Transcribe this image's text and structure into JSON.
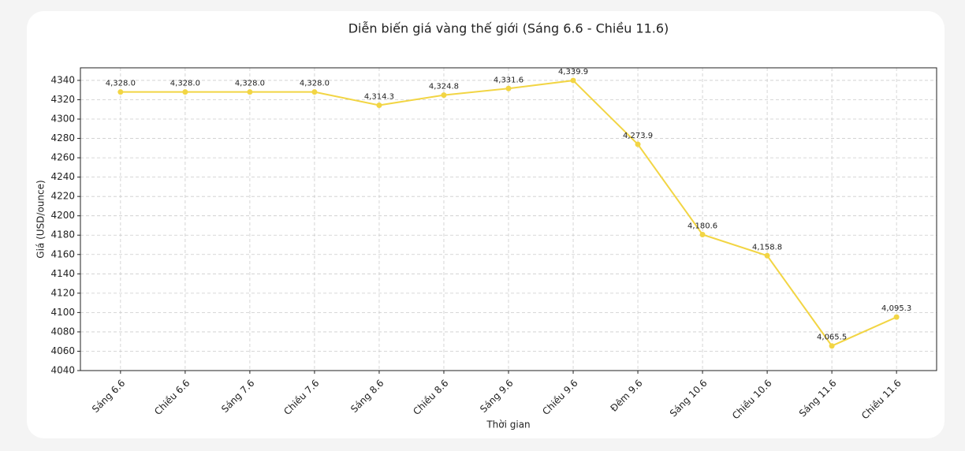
{
  "chart_data": {
    "type": "line",
    "title": "Diễn biến giá vàng thế giới (Sáng 6.6 - Chiều 11.6)",
    "x_label": "Thời gian",
    "y_label": "Giá (USD/ounce)",
    "categories": [
      "Sáng 6.6",
      "Chiều 6.6",
      "Sáng 7.6",
      "Chiều 7.6",
      "Sáng 8.6",
      "Chiều 8.6",
      "Sáng 9.6",
      "Chiều 9.6",
      "Đêm 9.6",
      "Sáng 10.6",
      "Chiều 10.6",
      "Sáng 11.6",
      "Chiều 11.6"
    ],
    "series": [
      {
        "name": "Giá",
        "color": "#f2d544",
        "values": [
          4328.0,
          4328.0,
          4328.0,
          4328.0,
          4314.3,
          4324.8,
          4331.6,
          4339.9,
          4273.9,
          4180.6,
          4158.8,
          4065.5,
          4095.3
        ],
        "value_labels": [
          "4,328.0",
          "4,328.0",
          "4,328.0",
          "4,328.0",
          "4,314.3",
          "4,324.8",
          "4,331.6",
          "4,339.9",
          "4,273.9",
          "4,180.6",
          "4,158.8",
          "4,065.5",
          "4,095.3"
        ]
      }
    ],
    "ylim": [
      4040,
      4353
    ],
    "yticks": [
      4040,
      4060,
      4080,
      4100,
      4120,
      4140,
      4160,
      4180,
      4200,
      4220,
      4240,
      4260,
      4280,
      4300,
      4320,
      4340
    ],
    "grid": true
  }
}
